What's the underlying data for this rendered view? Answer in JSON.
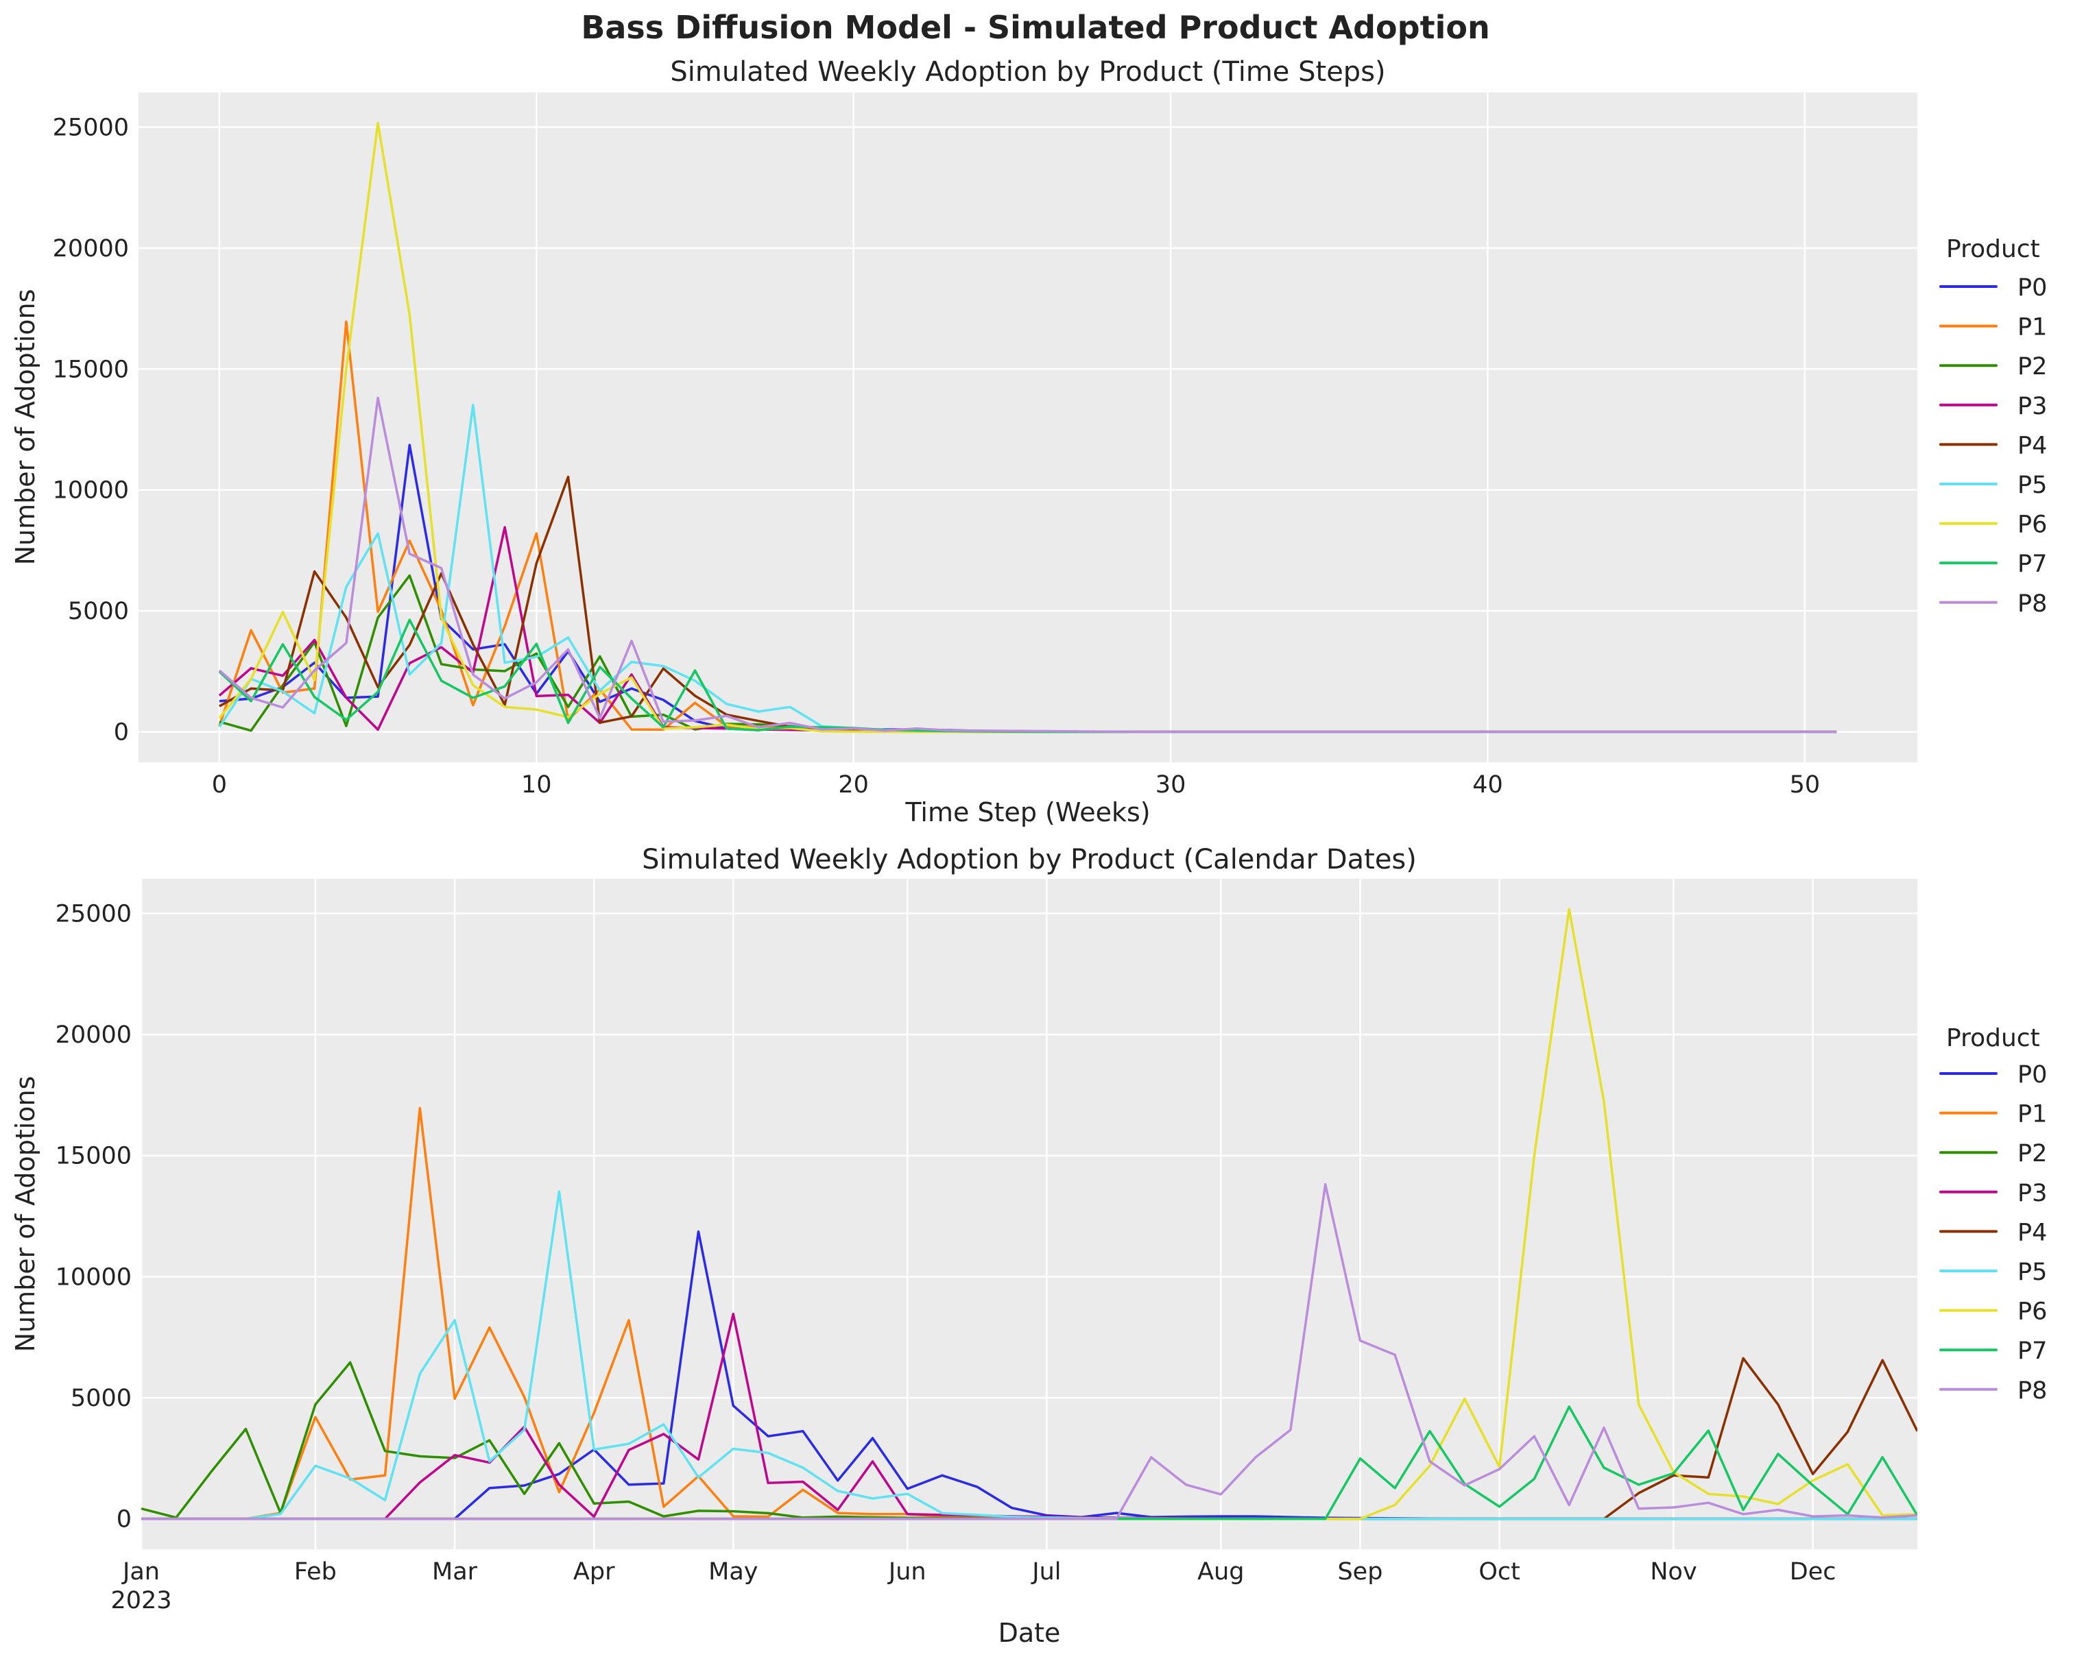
{
  "title": "Bass Diffusion Model - Simulated Product Adoption",
  "colors": {
    "P0": "#2a2ae8",
    "P1": "#ff7f0e",
    "P2": "#2f8f00",
    "P3": "#c0068c",
    "P4": "#8b3000",
    "P5": "#5fe3f2",
    "P6": "#e6e02a",
    "P7": "#16c864",
    "P8": "#bb8cdb",
    "axes_background": "#ebebeb",
    "grid": "#ffffff"
  },
  "chart_data": [
    {
      "type": "line",
      "title": "Simulated Weekly Adoption by Product (Time Steps)",
      "xlabel": "Time Step (Weeks)",
      "ylabel": "Number of Adoptions",
      "xlim": [
        -2.55,
        53.55
      ],
      "ylim": [
        -1258,
        26428
      ],
      "xticks": [
        0,
        10,
        20,
        30,
        40,
        50
      ],
      "xtick_labels": [
        "0",
        "10",
        "20",
        "30",
        "40",
        "50"
      ],
      "yticks": [
        0,
        5000,
        10000,
        15000,
        20000,
        25000
      ],
      "ytick_labels": [
        "0",
        "5000",
        "10000",
        "15000",
        "20000",
        "25000"
      ],
      "grid": true,
      "legend": {
        "title": "Product",
        "placement": "right"
      },
      "series": [
        {
          "name": "P0",
          "values": [
            1270,
            1375,
            1850,
            2860,
            1410,
            1460,
            11860,
            4670,
            3410,
            3620,
            1580,
            3330,
            1240,
            1790,
            1320,
            450,
            140,
            70,
            240,
            70,
            90,
            100,
            100,
            70,
            40,
            30,
            20,
            10,
            0,
            0,
            0,
            0,
            0,
            0,
            0,
            0,
            0,
            0,
            0,
            0,
            0,
            0,
            0,
            0,
            0,
            0,
            0,
            0,
            0,
            0,
            0,
            0
          ]
        },
        {
          "name": "P1",
          "values": [
            240,
            4200,
            1620,
            1790,
            16960,
            4960,
            7900,
            5030,
            1100,
            4370,
            8200,
            500,
            1760,
            100,
            90,
            1200,
            240,
            190,
            190,
            100,
            60,
            40,
            30,
            20,
            10,
            0,
            0,
            0,
            0,
            0,
            0,
            0,
            0,
            0,
            0,
            0,
            0,
            0,
            0,
            0,
            0,
            0,
            0,
            0,
            0,
            0,
            0,
            0,
            0,
            0,
            0,
            0
          ]
        },
        {
          "name": "P2",
          "values": [
            420,
            50,
            1930,
            3710,
            240,
            4720,
            6460,
            2800,
            2580,
            2510,
            3240,
            1030,
            3120,
            630,
            710,
            100,
            330,
            310,
            230,
            50,
            90,
            60,
            40,
            30,
            20,
            10,
            0,
            0,
            0,
            0,
            0,
            0,
            0,
            0,
            0,
            0,
            0,
            0,
            0,
            0,
            0,
            0,
            0,
            0,
            0,
            0,
            0,
            0,
            0,
            0,
            0,
            0
          ]
        },
        {
          "name": "P3",
          "values": [
            1500,
            2630,
            2320,
            3800,
            1410,
            90,
            2840,
            3500,
            2450,
            8460,
            1480,
            1530,
            370,
            2370,
            190,
            160,
            140,
            100,
            80,
            60,
            40,
            30,
            20,
            10,
            0,
            0,
            0,
            0,
            0,
            0,
            0,
            0,
            0,
            0,
            0,
            0,
            0,
            0,
            0,
            0,
            0,
            0,
            0,
            0,
            0,
            0,
            0,
            0,
            0,
            0,
            0,
            0
          ]
        },
        {
          "name": "P4",
          "values": [
            1060,
            1790,
            1710,
            6630,
            4720,
            1850,
            3590,
            6550,
            3620,
            1110,
            6970,
            10540,
            380,
            640,
            2620,
            1490,
            710,
            450,
            210,
            110,
            110,
            80,
            50,
            30,
            20,
            10,
            0,
            0,
            0,
            0,
            0,
            0,
            0,
            0,
            0,
            0,
            0,
            0,
            0,
            0,
            0,
            0,
            0,
            0,
            0,
            0,
            0,
            0,
            0,
            0,
            0,
            0
          ]
        },
        {
          "name": "P5",
          "values": [
            200,
            2190,
            1670,
            770,
            5990,
            8200,
            2370,
            3670,
            13510,
            2860,
            3100,
            3900,
            1710,
            2890,
            2720,
            2110,
            1150,
            840,
            1030,
            230,
            160,
            80,
            50,
            30,
            20,
            10,
            0,
            0,
            0,
            0,
            0,
            0,
            0,
            0,
            0,
            0,
            0,
            0,
            0,
            0,
            0,
            0,
            0,
            0,
            0,
            0,
            0,
            0,
            0,
            0,
            0,
            0
          ]
        },
        {
          "name": "P6",
          "values": [
            570,
            2190,
            4960,
            2140,
            15000,
            25170,
            17250,
            4720,
            1930,
            1030,
            920,
            610,
            1580,
            2250,
            140,
            190,
            300,
            110,
            160,
            20,
            10,
            0,
            0,
            0,
            0,
            0,
            0,
            0,
            0,
            0,
            0,
            0,
            0,
            0,
            0,
            0,
            0,
            0,
            0,
            0,
            0,
            0,
            0,
            0,
            0,
            0,
            0,
            0,
            0,
            0,
            0,
            0
          ]
        },
        {
          "name": "P7",
          "values": [
            2490,
            1270,
            3620,
            1440,
            500,
            1650,
            4630,
            2110,
            1410,
            1880,
            3640,
            370,
            2680,
            1380,
            190,
            2540,
            140,
            70,
            210,
            190,
            160,
            80,
            50,
            30,
            20,
            10,
            0,
            0,
            0,
            0,
            0,
            0,
            0,
            0,
            0,
            0,
            0,
            0,
            0,
            0,
            0,
            0,
            0,
            0,
            0,
            0,
            0,
            0,
            0,
            0,
            0,
            0
          ]
        },
        {
          "name": "P8",
          "values": [
            2540,
            1410,
            1010,
            2540,
            3670,
            13810,
            7360,
            6770,
            2370,
            1380,
            2050,
            3410,
            570,
            3760,
            420,
            470,
            660,
            190,
            370,
            100,
            140,
            50,
            140,
            60,
            50,
            40,
            30,
            20,
            10,
            0,
            0,
            0,
            0,
            0,
            0,
            0,
            0,
            0,
            0,
            0,
            0,
            0,
            0,
            0,
            0,
            0,
            0,
            0,
            0,
            0,
            0,
            0
          ]
        }
      ]
    },
    {
      "type": "line",
      "title": "Simulated Weekly Adoption by Product (Calendar Dates)",
      "xlabel": "Date",
      "ylabel": "Number of Adoptions",
      "ylim": [
        -1258,
        26428
      ],
      "x": [
        "2023-01-02",
        "2023-01-09",
        "2023-01-16",
        "2023-01-23",
        "2023-01-30",
        "2023-02-06",
        "2023-02-13",
        "2023-02-20",
        "2023-02-27",
        "2023-03-06",
        "2023-03-13",
        "2023-03-20",
        "2023-03-27",
        "2023-04-03",
        "2023-04-10",
        "2023-04-17",
        "2023-04-24",
        "2023-05-01",
        "2023-05-08",
        "2023-05-15",
        "2023-05-22",
        "2023-05-29",
        "2023-06-05",
        "2023-06-12",
        "2023-06-19",
        "2023-06-26",
        "2023-07-03",
        "2023-07-10",
        "2023-07-17",
        "2023-07-24",
        "2023-07-31",
        "2023-08-07",
        "2023-08-14",
        "2023-08-21",
        "2023-08-28",
        "2023-09-04",
        "2023-09-11",
        "2023-09-18",
        "2023-09-25",
        "2023-10-02",
        "2023-10-09",
        "2023-10-16",
        "2023-10-23",
        "2023-10-30",
        "2023-11-06",
        "2023-11-13",
        "2023-11-20",
        "2023-11-27",
        "2023-12-04",
        "2023-12-11",
        "2023-12-18",
        "2023-12-25"
      ],
      "xtick_labels": [
        "Jan",
        "Feb",
        "Mar",
        "Apr",
        "May",
        "Jun",
        "Jul",
        "Aug",
        "Sep",
        "Oct",
        "Nov",
        "Dec"
      ],
      "xtick_year": "2023",
      "yticks": [
        0,
        5000,
        10000,
        15000,
        20000,
        25000
      ],
      "ytick_labels": [
        "0",
        "5000",
        "10000",
        "15000",
        "20000",
        "25000"
      ],
      "grid": true,
      "legend": {
        "title": "Product",
        "placement": "right"
      },
      "series": [
        {
          "name": "P0",
          "values": [
            0,
            0,
            0,
            0,
            0,
            0,
            0,
            0,
            0,
            0,
            1270,
            1375,
            1850,
            2860,
            1410,
            1460,
            11860,
            4670,
            3410,
            3620,
            1580,
            3330,
            1240,
            1790,
            1320,
            450,
            140,
            70,
            240,
            70,
            90,
            100,
            100,
            70,
            40,
            30,
            20,
            10,
            0,
            0,
            0,
            0,
            0,
            0,
            0,
            0,
            0,
            0,
            0,
            0,
            0,
            0
          ]
        },
        {
          "name": "P1",
          "values": [
            0,
            0,
            0,
            0,
            240,
            4200,
            1620,
            1790,
            16960,
            4960,
            7900,
            5030,
            1100,
            4370,
            8200,
            500,
            1760,
            100,
            90,
            1200,
            240,
            190,
            190,
            100,
            60,
            40,
            30,
            20,
            10,
            0,
            0,
            0,
            0,
            0,
            0,
            0,
            0,
            0,
            0,
            0,
            0,
            0,
            0,
            0,
            0,
            0,
            0,
            0,
            0,
            0,
            0,
            0
          ]
        },
        {
          "name": "P2",
          "values": [
            420,
            50,
            1930,
            3710,
            240,
            4720,
            6460,
            2800,
            2580,
            2510,
            3240,
            1030,
            3120,
            630,
            710,
            100,
            330,
            310,
            230,
            50,
            90,
            60,
            40,
            30,
            20,
            10,
            0,
            0,
            0,
            0,
            0,
            0,
            0,
            0,
            0,
            0,
            0,
            0,
            0,
            0,
            0,
            0,
            0,
            0,
            0,
            0,
            0,
            0,
            0,
            0,
            0,
            0
          ]
        },
        {
          "name": "P3",
          "values": [
            0,
            0,
            0,
            0,
            0,
            0,
            0,
            0,
            1500,
            2630,
            2320,
            3800,
            1410,
            90,
            2840,
            3500,
            2450,
            8460,
            1480,
            1530,
            370,
            2370,
            190,
            160,
            140,
            100,
            80,
            60,
            40,
            30,
            20,
            10,
            0,
            0,
            0,
            0,
            0,
            0,
            0,
            0,
            0,
            0,
            0,
            0,
            0,
            0,
            0,
            0,
            0,
            0,
            0,
            0
          ]
        },
        {
          "name": "P4",
          "values": [
            0,
            0,
            0,
            0,
            0,
            0,
            0,
            0,
            0,
            0,
            0,
            0,
            0,
            0,
            0,
            0,
            0,
            0,
            0,
            0,
            0,
            0,
            0,
            0,
            0,
            0,
            0,
            0,
            0,
            0,
            0,
            0,
            0,
            0,
            0,
            0,
            0,
            0,
            0,
            0,
            0,
            0,
            0,
            1060,
            1790,
            1710,
            6630,
            4720,
            1850,
            3590,
            6550,
            3620
          ]
        },
        {
          "name": "P5",
          "values": [
            0,
            0,
            0,
            0,
            200,
            2190,
            1670,
            770,
            5990,
            8200,
            2370,
            3670,
            13510,
            2860,
            3100,
            3900,
            1710,
            2890,
            2720,
            2110,
            1150,
            840,
            1030,
            230,
            160,
            80,
            50,
            30,
            20,
            10,
            0,
            0,
            0,
            0,
            0,
            0,
            0,
            0,
            0,
            0,
            0,
            0,
            0,
            0,
            0,
            0,
            0,
            0,
            0,
            0,
            0,
            0
          ]
        },
        {
          "name": "P6",
          "values": [
            0,
            0,
            0,
            0,
            0,
            0,
            0,
            0,
            0,
            0,
            0,
            0,
            0,
            0,
            0,
            0,
            0,
            0,
            0,
            0,
            0,
            0,
            0,
            0,
            0,
            0,
            0,
            0,
            0,
            0,
            0,
            0,
            0,
            0,
            0,
            0,
            570,
            2190,
            4960,
            2140,
            15000,
            25170,
            17250,
            4720,
            1930,
            1030,
            920,
            610,
            1580,
            2250,
            140,
            190
          ]
        },
        {
          "name": "P7",
          "values": [
            0,
            0,
            0,
            0,
            0,
            0,
            0,
            0,
            0,
            0,
            0,
            0,
            0,
            0,
            0,
            0,
            0,
            0,
            0,
            0,
            0,
            0,
            0,
            0,
            0,
            0,
            0,
            0,
            0,
            0,
            0,
            0,
            0,
            0,
            0,
            2490,
            1270,
            3620,
            1440,
            500,
            1650,
            4630,
            2110,
            1410,
            1880,
            3640,
            370,
            2680,
            1380,
            190,
            2540,
            140
          ]
        },
        {
          "name": "P8",
          "values": [
            0,
            0,
            0,
            0,
            0,
            0,
            0,
            0,
            0,
            0,
            0,
            0,
            0,
            0,
            0,
            0,
            0,
            0,
            0,
            0,
            0,
            0,
            0,
            0,
            0,
            0,
            0,
            0,
            0,
            2540,
            1410,
            1010,
            2540,
            3670,
            13810,
            7360,
            6770,
            2370,
            1380,
            2050,
            3410,
            570,
            3760,
            420,
            470,
            660,
            190,
            370,
            100,
            140,
            50,
            140
          ]
        }
      ]
    }
  ]
}
